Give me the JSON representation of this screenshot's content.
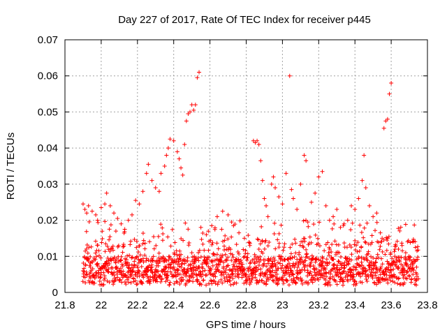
{
  "chart_data": {
    "type": "scatter",
    "title": "Day 227 of 2017, Rate Of TEC Index for receiver p445",
    "xlabel": "GPS time / hours",
    "ylabel": "ROTI / TECUs",
    "xlim": [
      21.8,
      23.8
    ],
    "ylim": [
      0,
      0.07
    ],
    "xticks": [
      21.8,
      22.0,
      22.2,
      22.4,
      22.6,
      22.8,
      23.0,
      23.2,
      23.4,
      23.6,
      23.8
    ],
    "xtick_labels": [
      "21.8",
      "22",
      "22.2",
      "22.4",
      "22.6",
      "22.8",
      "23",
      "23.2",
      "23.4",
      "23.6",
      "23.8"
    ],
    "yticks": [
      0,
      0.01,
      0.02,
      0.03,
      0.04,
      0.05,
      0.06,
      0.07
    ],
    "ytick_labels": [
      "0",
      "0.01",
      "0.02",
      "0.03",
      "0.04",
      "0.05",
      "0.06",
      "0.07"
    ],
    "grid": true,
    "marker": "+",
    "color": "#ff0000",
    "x_range_of_points": [
      21.9,
      23.75
    ],
    "series": [
      {
        "name": "p445 ROTI",
        "points": [
          [
            21.9,
            0.0245
          ],
          [
            21.91,
            0.023
          ],
          [
            21.92,
            0.022
          ],
          [
            21.93,
            0.024
          ],
          [
            21.95,
            0.0225
          ],
          [
            21.97,
            0.0215
          ],
          [
            21.98,
            0.02
          ],
          [
            22.0,
            0.0235
          ],
          [
            22.02,
            0.0245
          ],
          [
            22.03,
            0.0275
          ],
          [
            22.05,
            0.024
          ],
          [
            22.07,
            0.022
          ],
          [
            22.09,
            0.0205
          ],
          [
            22.11,
            0.019
          ],
          [
            22.13,
            0.0175
          ],
          [
            22.15,
            0.02
          ],
          [
            22.17,
            0.0215
          ],
          [
            22.19,
            0.0255
          ],
          [
            22.21,
            0.0245
          ],
          [
            22.23,
            0.028
          ],
          [
            22.25,
            0.033
          ],
          [
            22.26,
            0.0355
          ],
          [
            22.28,
            0.031
          ],
          [
            22.3,
            0.029
          ],
          [
            22.32,
            0.028
          ],
          [
            22.33,
            0.033
          ],
          [
            22.35,
            0.035
          ],
          [
            22.36,
            0.038
          ],
          [
            22.37,
            0.04
          ],
          [
            22.38,
            0.0425
          ],
          [
            22.4,
            0.042
          ],
          [
            22.42,
            0.039
          ],
          [
            22.43,
            0.037
          ],
          [
            22.44,
            0.0345
          ],
          [
            22.45,
            0.0325
          ],
          [
            22.46,
            0.041
          ],
          [
            22.47,
            0.0475
          ],
          [
            22.48,
            0.0495
          ],
          [
            22.49,
            0.05
          ],
          [
            22.5,
            0.052
          ],
          [
            22.51,
            0.0505
          ],
          [
            22.52,
            0.052
          ],
          [
            22.53,
            0.0595
          ],
          [
            22.54,
            0.061
          ],
          [
            22.55,
            0.018
          ],
          [
            22.58,
            0.016
          ],
          [
            22.61,
            0.0185
          ],
          [
            22.64,
            0.021
          ],
          [
            22.67,
            0.0225
          ],
          [
            22.7,
            0.0215
          ],
          [
            22.73,
            0.0185
          ],
          [
            22.76,
            0.0165
          ],
          [
            22.79,
            0.015
          ],
          [
            22.82,
            0.013
          ],
          [
            22.84,
            0.042
          ],
          [
            22.85,
            0.0415
          ],
          [
            22.86,
            0.042
          ],
          [
            22.87,
            0.041
          ],
          [
            22.88,
            0.0365
          ],
          [
            22.89,
            0.031
          ],
          [
            22.9,
            0.026
          ],
          [
            22.91,
            0.024
          ],
          [
            22.92,
            0.021
          ],
          [
            22.94,
            0.03
          ],
          [
            22.95,
            0.032
          ],
          [
            22.96,
            0.029
          ],
          [
            22.98,
            0.0265
          ],
          [
            23.0,
            0.0245
          ],
          [
            23.02,
            0.033
          ],
          [
            23.04,
            0.06
          ],
          [
            23.05,
            0.0285
          ],
          [
            23.06,
            0.026
          ],
          [
            23.08,
            0.023
          ],
          [
            23.1,
            0.03
          ],
          [
            23.12,
            0.038
          ],
          [
            23.13,
            0.0365
          ],
          [
            23.14,
            0.0195
          ],
          [
            23.16,
            0.025
          ],
          [
            23.18,
            0.0275
          ],
          [
            23.2,
            0.032
          ],
          [
            23.22,
            0.0335
          ],
          [
            23.24,
            0.024
          ],
          [
            23.26,
            0.02
          ],
          [
            23.28,
            0.021
          ],
          [
            23.3,
            0.023
          ],
          [
            23.32,
            0.018
          ],
          [
            23.34,
            0.019
          ],
          [
            23.36,
            0.02
          ],
          [
            23.38,
            0.024
          ],
          [
            23.4,
            0.023
          ],
          [
            23.42,
            0.026
          ],
          [
            23.44,
            0.031
          ],
          [
            23.45,
            0.038
          ],
          [
            23.46,
            0.029
          ],
          [
            23.48,
            0.024
          ],
          [
            23.5,
            0.021
          ],
          [
            23.52,
            0.022
          ],
          [
            23.54,
            0.0165
          ],
          [
            23.55,
            0.015
          ],
          [
            23.56,
            0.0455
          ],
          [
            23.57,
            0.0475
          ],
          [
            23.58,
            0.048
          ],
          [
            23.59,
            0.055
          ],
          [
            23.6,
            0.058
          ],
          [
            23.62,
            0.01
          ],
          [
            23.64,
            0.012
          ],
          [
            23.66,
            0.013
          ],
          [
            23.68,
            0.011
          ],
          [
            23.7,
            0.009
          ],
          [
            23.72,
            0.008
          ],
          [
            23.74,
            0.007
          ],
          [
            21.9,
            0.006
          ],
          [
            21.92,
            0.005
          ],
          [
            21.94,
            0.007
          ],
          [
            21.96,
            0.0045
          ],
          [
            21.98,
            0.008
          ],
          [
            22.0,
            0.0055
          ],
          [
            22.02,
            0.004
          ],
          [
            22.04,
            0.0065
          ],
          [
            22.06,
            0.005
          ],
          [
            22.08,
            0.0035
          ],
          [
            22.1,
            0.006
          ],
          [
            22.12,
            0.0045
          ],
          [
            22.14,
            0.0075
          ],
          [
            22.16,
            0.005
          ],
          [
            22.18,
            0.003
          ],
          [
            22.2,
            0.0055
          ],
          [
            22.22,
            0.009
          ],
          [
            22.24,
            0.006
          ],
          [
            22.26,
            0.004
          ],
          [
            22.28,
            0.007
          ],
          [
            22.3,
            0.005
          ],
          [
            22.32,
            0.0085
          ],
          [
            22.34,
            0.006
          ],
          [
            22.36,
            0.004
          ],
          [
            22.38,
            0.0095
          ],
          [
            22.4,
            0.007
          ],
          [
            22.42,
            0.005
          ],
          [
            22.44,
            0.0105
          ],
          [
            22.46,
            0.008
          ],
          [
            22.48,
            0.006
          ],
          [
            22.5,
            0.011
          ],
          [
            22.52,
            0.009
          ],
          [
            22.54,
            0.007
          ],
          [
            22.56,
            0.005
          ],
          [
            22.58,
            0.008
          ],
          [
            22.6,
            0.006
          ],
          [
            22.62,
            0.0045
          ],
          [
            22.64,
            0.007
          ],
          [
            22.66,
            0.0055
          ],
          [
            22.68,
            0.004
          ],
          [
            22.7,
            0.0075
          ],
          [
            22.72,
            0.006
          ],
          [
            22.74,
            0.0045
          ],
          [
            22.76,
            0.008
          ],
          [
            22.78,
            0.006
          ],
          [
            22.8,
            0.005
          ],
          [
            22.82,
            0.007
          ],
          [
            22.84,
            0.0055
          ],
          [
            22.86,
            0.0085
          ],
          [
            22.88,
            0.0065
          ],
          [
            22.9,
            0.005
          ],
          [
            22.92,
            0.009
          ],
          [
            22.94,
            0.007
          ],
          [
            22.96,
            0.0055
          ],
          [
            22.98,
            0.01
          ],
          [
            23.0,
            0.0075
          ],
          [
            23.02,
            0.006
          ],
          [
            23.04,
            0.0045
          ],
          [
            23.06,
            0.008
          ],
          [
            23.08,
            0.006
          ],
          [
            23.1,
            0.004
          ],
          [
            23.12,
            0.007
          ],
          [
            23.14,
            0.0055
          ],
          [
            23.16,
            0.0035
          ],
          [
            23.18,
            0.0065
          ],
          [
            23.2,
            0.005
          ],
          [
            23.22,
            0.0075
          ],
          [
            23.24,
            0.0055
          ],
          [
            23.26,
            0.004
          ],
          [
            23.28,
            0.0065
          ],
          [
            23.3,
            0.005
          ],
          [
            23.32,
            0.008
          ],
          [
            23.34,
            0.006
          ],
          [
            23.36,
            0.0045
          ],
          [
            23.38,
            0.009
          ],
          [
            23.4,
            0.007
          ],
          [
            23.42,
            0.005
          ],
          [
            23.44,
            0.0065
          ],
          [
            23.46,
            0.0045
          ],
          [
            23.48,
            0.0075
          ],
          [
            23.5,
            0.0055
          ],
          [
            23.52,
            0.004
          ],
          [
            23.54,
            0.0065
          ],
          [
            23.56,
            0.005
          ],
          [
            23.58,
            0.0035
          ],
          [
            23.6,
            0.006
          ],
          [
            23.62,
            0.0045
          ],
          [
            23.64,
            0.007
          ],
          [
            23.66,
            0.0055
          ],
          [
            23.68,
            0.004
          ],
          [
            23.7,
            0.0065
          ],
          [
            23.72,
            0.005
          ],
          [
            23.74,
            0.0035
          ]
        ]
      }
    ]
  }
}
